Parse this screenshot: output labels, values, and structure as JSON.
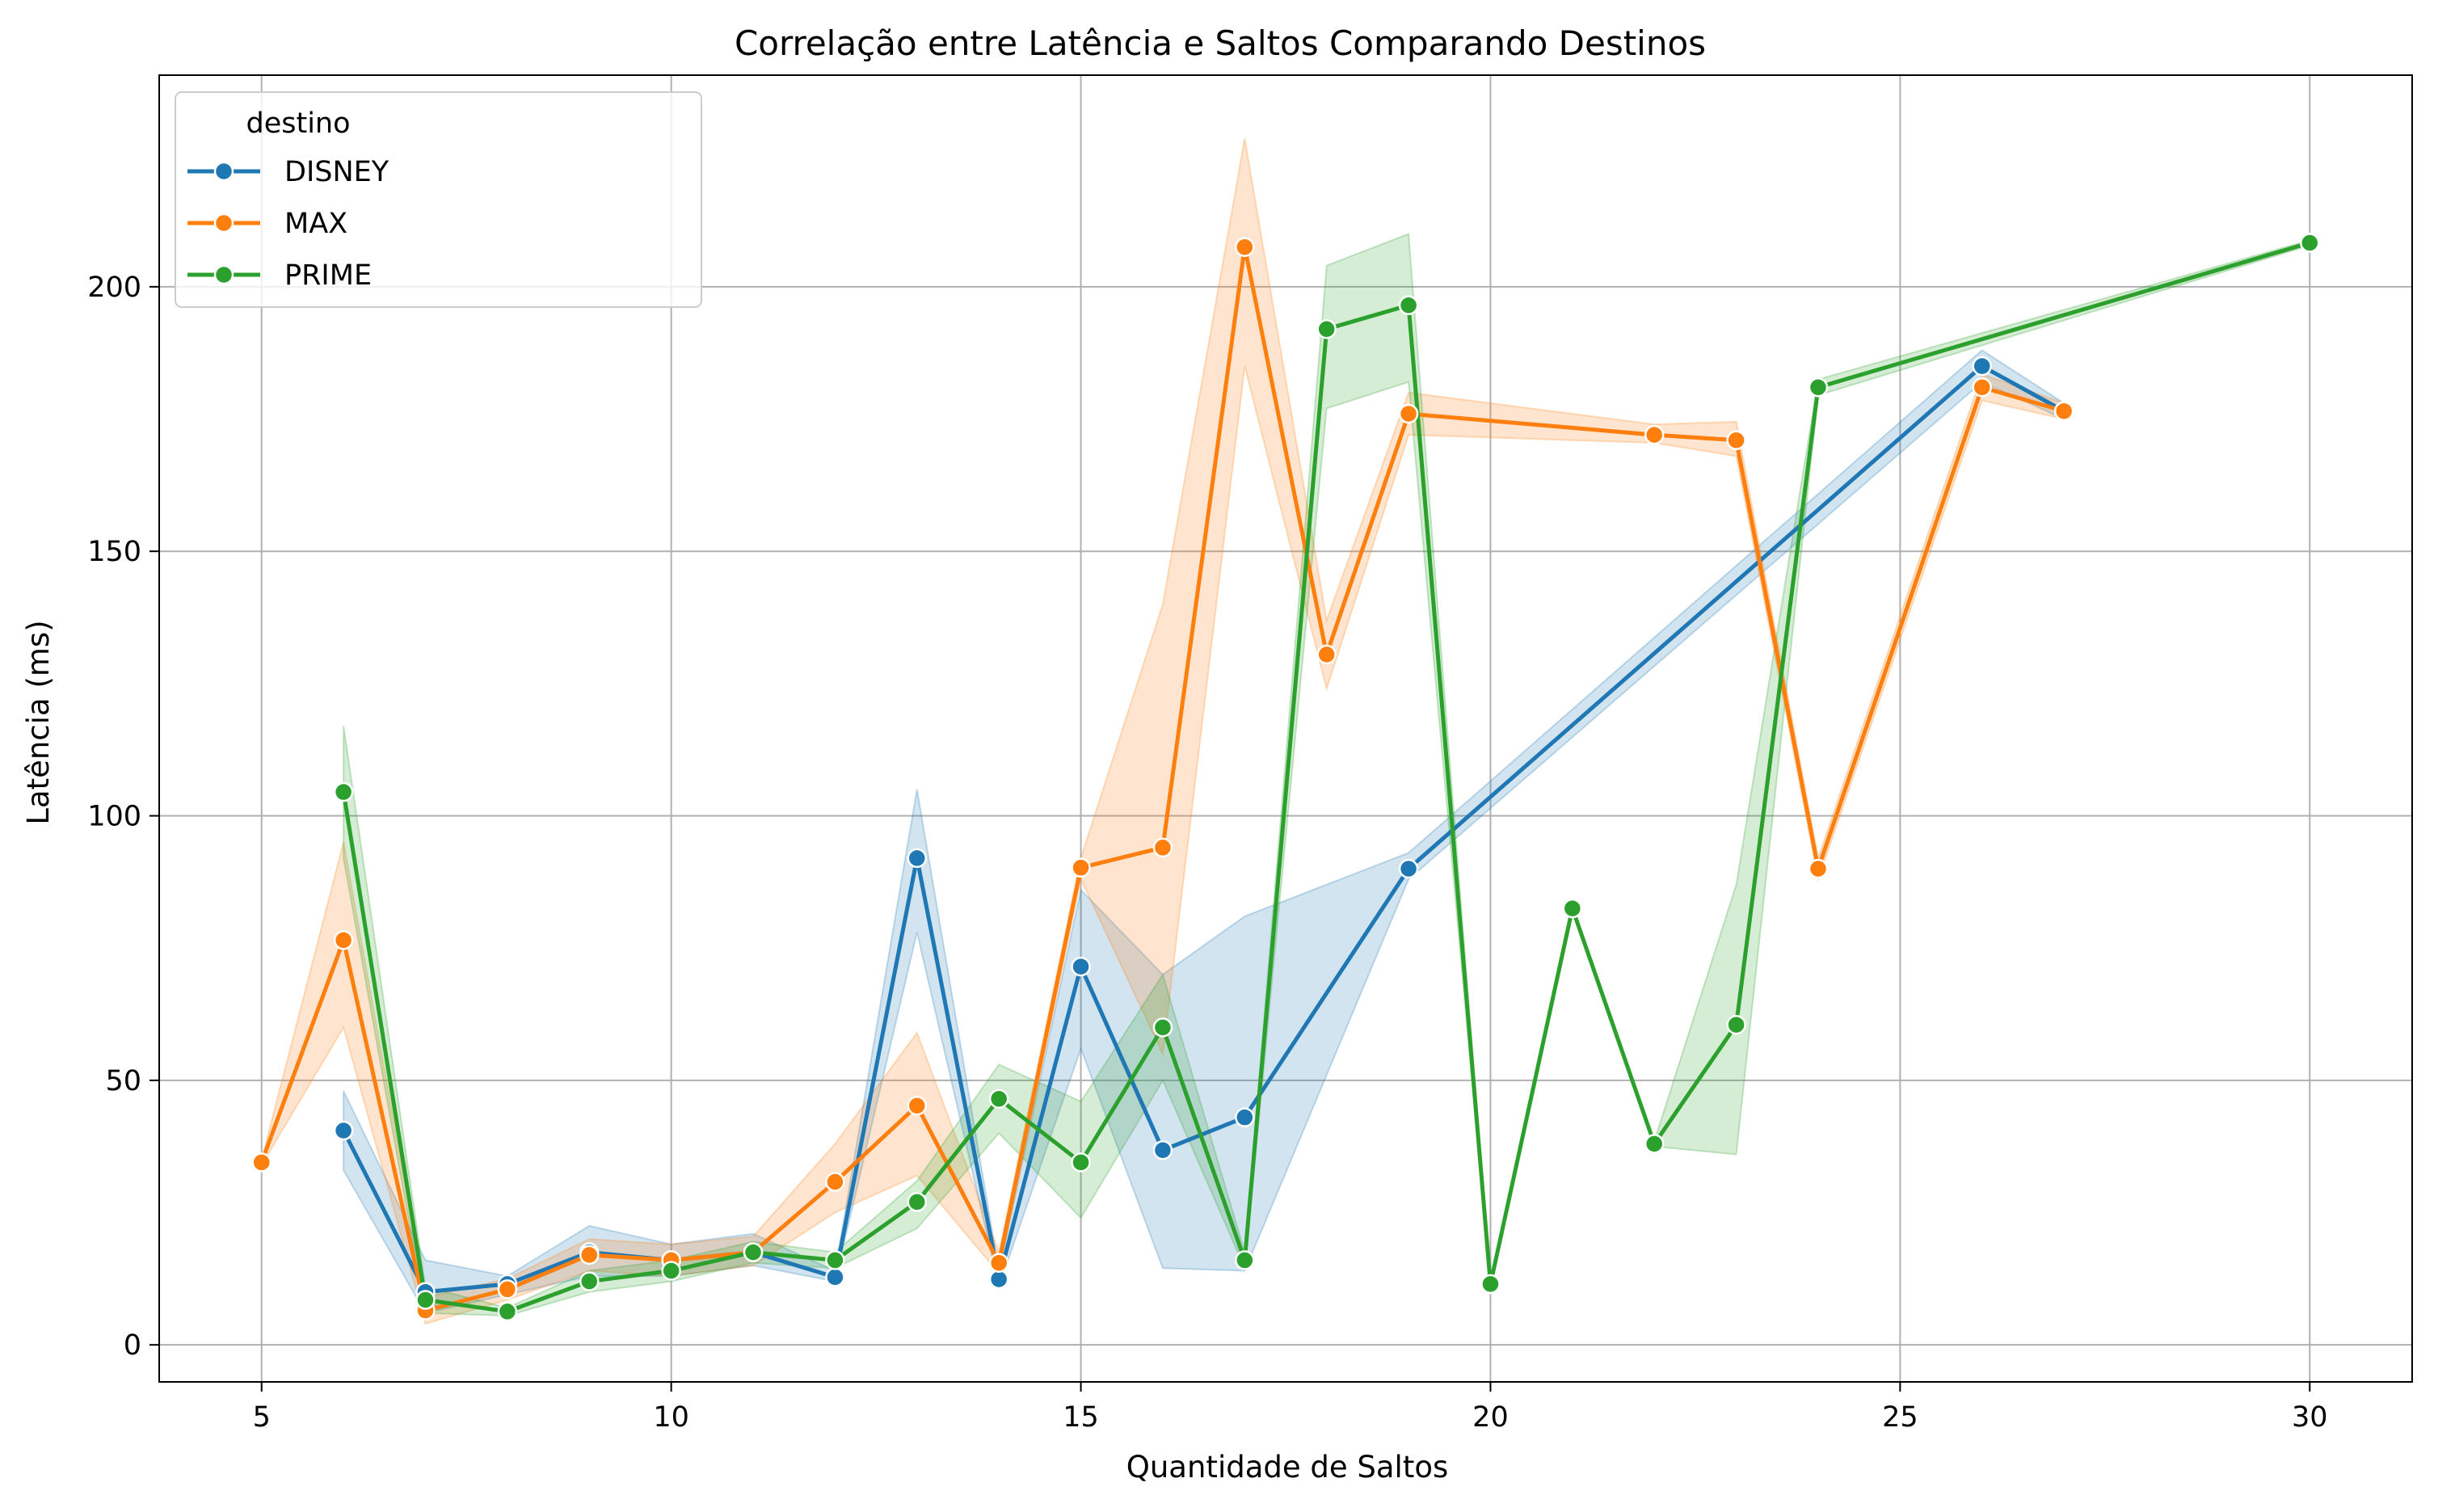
{
  "chart_data": {
    "type": "line",
    "title": "Correlação entre Latência e Saltos Comparando Destinos",
    "xlabel": "Quantidade de Saltos",
    "ylabel": "Latência (ms)",
    "xlim": [
      3.75,
      31.25
    ],
    "ylim": [
      -7,
      240
    ],
    "xticks": [
      5,
      10,
      15,
      20,
      25,
      30
    ],
    "yticks": [
      0,
      50,
      100,
      150,
      200
    ],
    "grid": true,
    "legend": {
      "title": "destino",
      "placement": "top-left"
    },
    "series": [
      {
        "name": "DISNEY",
        "color": "#1f77b4",
        "x": [
          6,
          7,
          8,
          9,
          10,
          11,
          12,
          13,
          14,
          15,
          16,
          17,
          19,
          26,
          27
        ],
        "y": [
          40.5,
          10,
          11.5,
          17.5,
          16,
          17.5,
          12.8,
          92,
          12.4,
          71.5,
          36.8,
          43,
          90,
          185,
          176.5
        ],
        "band_low": [
          33,
          6,
          9.5,
          13,
          13,
          15,
          12,
          78,
          11,
          56,
          14.5,
          14,
          88,
          182,
          175
        ],
        "band_high": [
          48,
          16,
          13,
          22.5,
          19,
          21,
          14,
          105,
          14,
          86,
          70,
          81,
          93,
          188,
          178
        ]
      },
      {
        "name": "MAX",
        "color": "#ff7f0e",
        "x": [
          5,
          6,
          7,
          8,
          9,
          10,
          11,
          12,
          13,
          14,
          15,
          16,
          17,
          18,
          19,
          22,
          23,
          24,
          26,
          27
        ],
        "y": [
          34.5,
          76.5,
          6.5,
          10.5,
          17,
          16,
          17.5,
          30.8,
          45.2,
          15.5,
          90.2,
          94,
          207.5,
          130.5,
          176,
          172,
          171,
          90,
          181,
          176.5
        ],
        "band_low": [
          34,
          60,
          4,
          8.5,
          14,
          13,
          15,
          25,
          32,
          13.5,
          88,
          55,
          185,
          124,
          172,
          170.5,
          168,
          88,
          178.5,
          175
        ],
        "band_high": [
          35,
          95,
          9,
          12.5,
          20,
          19,
          20.5,
          38,
          59,
          17.5,
          92,
          140,
          228,
          137,
          180,
          174,
          174.5,
          92,
          183.5,
          178
        ]
      },
      {
        "name": "PRIME",
        "color": "#2ca02c",
        "x": [
          6,
          7,
          8,
          9,
          10,
          11,
          12,
          13,
          14,
          15,
          16,
          17,
          18,
          19,
          20,
          21,
          22,
          23,
          24,
          30
        ],
        "y": [
          104.5,
          8.5,
          6.3,
          12,
          14,
          17.5,
          16,
          27,
          46.5,
          34.5,
          60,
          16,
          192,
          196.5,
          11.5,
          82.5,
          38,
          60.5,
          181,
          208.3
        ],
        "band_low": [
          92,
          6,
          5.5,
          10,
          12,
          15.5,
          14.5,
          22,
          40,
          24,
          50,
          14.5,
          177,
          182,
          11,
          82,
          37.5,
          36,
          179.5,
          207.8
        ],
        "band_high": [
          117,
          11,
          7,
          14,
          16,
          19.5,
          17.5,
          31,
          53,
          46,
          70,
          17.5,
          204,
          210,
          12,
          83,
          38.5,
          87,
          182.5,
          208.8
        ]
      }
    ]
  }
}
